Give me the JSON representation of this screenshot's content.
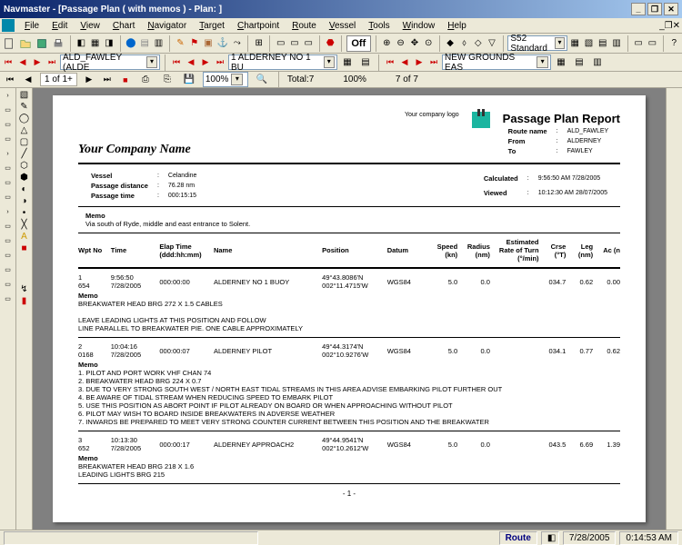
{
  "window": {
    "title": "Navmaster - [Passage Plan ( with memos ) - Plan: ]"
  },
  "menu": [
    "File",
    "Edit",
    "View",
    "Chart",
    "Navigator",
    "Target",
    "Chartpoint",
    "Route",
    "Vessel",
    "Tools",
    "Window",
    "Help"
  ],
  "toolbar2": {
    "off": "Off",
    "standard": "S52 Standard"
  },
  "nav": {
    "route_a": "ALD_FAWLEY (ALDE",
    "route_b": "1 ALDERNEY NO 1 BU",
    "route_c": "NEW GROUNDS EAS"
  },
  "pagenav": {
    "pos": "1 of 1+",
    "zoom": "100%",
    "total": "Total:7",
    "pct": "100%",
    "range": "7 of 7"
  },
  "report": {
    "title": "Passage Plan Report",
    "company": "Your Company Name",
    "logo_label": "Your company logo",
    "header": {
      "route_name_l": "Route name",
      "route_name_v": "ALD_FAWLEY",
      "from_l": "From",
      "from_v": "ALDERNEY",
      "to_l": "To",
      "to_v": "FAWLEY"
    },
    "vessel": {
      "vessel_l": "Vessel",
      "vessel_v": "Celandine",
      "dist_l": "Passage distance",
      "dist_v": "76.28  nm",
      "time_l": "Passage time",
      "time_v": "000:15:15",
      "calc_l": "Calculated",
      "calc_v": "9:56:50 AM 7/28/2005",
      "view_l": "Viewed",
      "view_v": "10:12:30 AM 28/07/2005"
    },
    "memo_hdr": "Memo",
    "memo_top": "Via south of Ryde, middle and east entrance to Solent.",
    "cols": {
      "wpt": "Wpt No",
      "time": "Time",
      "elap": "Elap Time (ddd:hh:mm)",
      "name": "Name",
      "pos": "Position",
      "datum": "Datum",
      "speed": "Speed (kn)",
      "radius": "Radius (nm)",
      "turn": "Estimated Rate of Turn (°/min)",
      "crse": "Crse (°T)",
      "leg": "Leg (nm)",
      "ac": "Ac (n"
    },
    "rows": [
      {
        "wpt": "1",
        "wpt2": "654",
        "time": "9:56:50",
        "date": "7/28/2005",
        "elap": "000:00:00",
        "name": "ALDERNEY NO 1 BUOY",
        "pos1": "49°43.8086'N",
        "pos2": "002°11.4715'W",
        "datum": "WGS84",
        "speed": "5.0",
        "radius": "0.0",
        "turn": "",
        "crse": "034.7",
        "leg": "0.62",
        "ac": "0.00",
        "memo_l": "Memo",
        "memo": [
          "BREAKWATER HEAD BRG 272 X 1.5 CABLES",
          "",
          "LEAVE LEADING LIGHTS AT THIS POSITION AND FOLLOW",
          "LINE PARALLEL TO BREAKWATER PIE. ONE CABLE APPROXIMATELY"
        ]
      },
      {
        "wpt": "2",
        "wpt2": "0168",
        "time": "10:04:16",
        "date": "7/28/2005",
        "elap": "000:00:07",
        "name": "ALDERNEY PILOT",
        "pos1": "49°44.3174'N",
        "pos2": "002°10.9276'W",
        "datum": "WGS84",
        "speed": "5.0",
        "radius": "0.0",
        "turn": "",
        "crse": "034.1",
        "leg": "0.77",
        "ac": "0.62",
        "memo_l": "Memo",
        "memo": [
          "1. PILOT AND PORT WORK VHF CHAN 74",
          "2. BREAKWATER HEAD BRG 224 X 0.7",
          "3. DUE TO VERY STRONG SOUTH WEST / NORTH EAST TIDAL STREAMS IN THIS AREA ADVISE EMBARKING PILOT FURTHER OUT",
          "4. BE AWARE OF TIDAL STREAM WHEN REDUCING SPEED TO EMBARK PILOT",
          "5. USE THIS POSITION AS ABORT POINT IF PILOT ALREADY ON BOARD OR WHEN APPROACHING WITHOUT PILOT",
          "6. PILOT MAY WISH TO BOARD INSIDE BREAKWATERS IN ADVERSE WEATHER",
          "7. INWARDS BE PREPARED TO MEET VERY STRONG COUNTER CURRENT BETWEEN THIS POSITION AND THE BREAKWATER"
        ]
      },
      {
        "wpt": "3",
        "wpt2": "652",
        "time": "10:13:30",
        "date": "7/28/2005",
        "elap": "000:00:17",
        "name": "ALDERNEY APPROACH2",
        "pos1": "49°44.9541'N",
        "pos2": "002°10.2612'W",
        "datum": "WGS84",
        "speed": "5.0",
        "radius": "0.0",
        "turn": "",
        "crse": "043.5",
        "leg": "6.69",
        "ac": "1.39",
        "memo_l": "Memo",
        "memo": [
          "BREAKWATER HEAD BRG 218 X 1.6",
          "LEADING LIGHTS BRG 215"
        ]
      }
    ],
    "page": "-  1  -"
  },
  "status": {
    "route": "Route",
    "date": "7/28/2005",
    "time": "0:14:53 AM"
  }
}
